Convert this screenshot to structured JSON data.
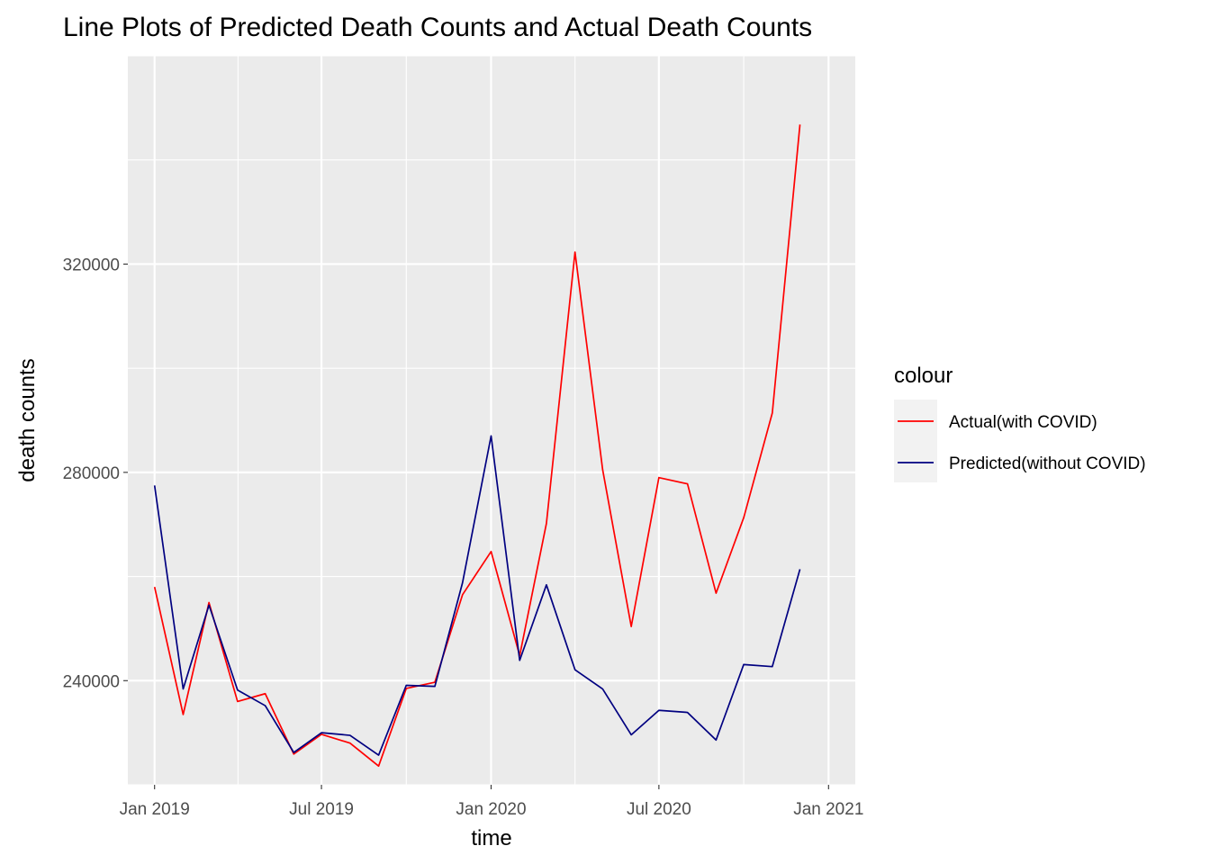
{
  "chart_data": {
    "type": "line",
    "title": "Line Plots of Predicted Death Counts and Actual Death Counts",
    "xlabel": "time",
    "ylabel": "death counts",
    "x": [
      "2019-01",
      "2019-02",
      "2019-03",
      "2019-04",
      "2019-05",
      "2019-06",
      "2019-07",
      "2019-08",
      "2019-09",
      "2019-10",
      "2019-11",
      "2019-12",
      "2020-01",
      "2020-02",
      "2020-03",
      "2020-04",
      "2020-05",
      "2020-06",
      "2020-07",
      "2020-08",
      "2020-09",
      "2020-10",
      "2020-11",
      "2020-12"
    ],
    "x_ticks": [
      {
        "date": "2019-01",
        "label": "Jan 2019"
      },
      {
        "date": "2019-07",
        "label": "Jul 2019"
      },
      {
        "date": "2020-01",
        "label": "Jan 2020"
      },
      {
        "date": "2020-07",
        "label": "Jul 2020"
      },
      {
        "date": "2021-01",
        "label": "Jan 2021"
      }
    ],
    "xlim": [
      "2018-12-03",
      "2021-01-30"
    ],
    "y_ticks": [
      240000,
      280000,
      320000
    ],
    "ylim": [
      220000,
      360000
    ],
    "grid": true,
    "legend": {
      "title": "colour",
      "position": "right"
    },
    "series": [
      {
        "name": "Actual(with COVID)",
        "color": "#ff0000",
        "values": [
          258000,
          233500,
          255000,
          236000,
          237500,
          225900,
          229700,
          228000,
          223600,
          238500,
          239700,
          256500,
          264800,
          244800,
          270200,
          322300,
          280500,
          250400,
          279000,
          277800,
          256800,
          271300,
          291400,
          346800
        ]
      },
      {
        "name": "Predicted(without COVID)",
        "color": "#000080",
        "values": [
          277500,
          238400,
          254500,
          238200,
          235200,
          226200,
          230000,
          229500,
          225700,
          239100,
          238900,
          258800,
          287000,
          243900,
          258400,
          242100,
          238400,
          229600,
          234300,
          233900,
          228600,
          243100,
          242700,
          261400
        ]
      }
    ]
  }
}
